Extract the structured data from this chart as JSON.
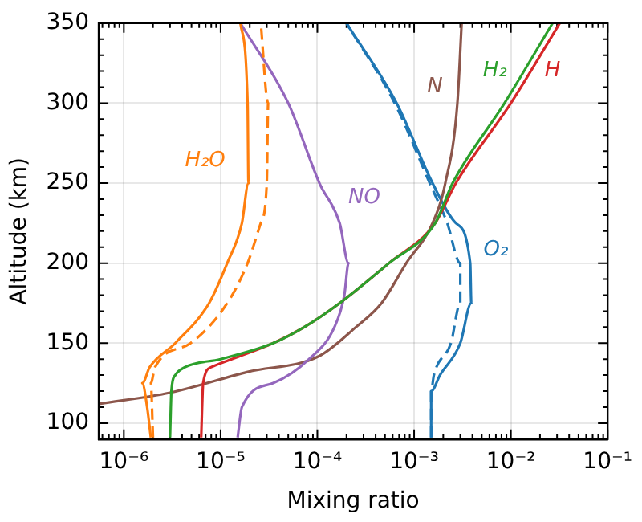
{
  "chart_data": {
    "type": "line",
    "xlabel": "Mixing ratio",
    "ylabel": "Altitude (km)",
    "log": "x",
    "grid": true,
    "legend": false,
    "marker": "none",
    "xlim": [
      5.5e-07,
      0.1
    ],
    "xticks": [
      {
        "value": 6e-07,
        "label": null
      },
      {
        "value": 7e-07,
        "label": null
      },
      {
        "value": 8e-07,
        "label": null
      },
      {
        "value": 9e-07,
        "label": null
      },
      {
        "value": 1e-06,
        "label": "10⁻⁶"
      },
      {
        "value": 2e-06,
        "label": null
      },
      {
        "value": 3e-06,
        "label": null
      },
      {
        "value": 4e-06,
        "label": null
      },
      {
        "value": 5e-06,
        "label": null
      },
      {
        "value": 6e-06,
        "label": null
      },
      {
        "value": 7e-06,
        "label": null
      },
      {
        "value": 8e-06,
        "label": null
      },
      {
        "value": 9e-06,
        "label": null
      },
      {
        "value": 1e-05,
        "label": "10⁻⁵"
      },
      {
        "value": 2e-05,
        "label": null
      },
      {
        "value": 3e-05,
        "label": null
      },
      {
        "value": 4e-05,
        "label": null
      },
      {
        "value": 5e-05,
        "label": null
      },
      {
        "value": 6e-05,
        "label": null
      },
      {
        "value": 7e-05,
        "label": null
      },
      {
        "value": 8e-05,
        "label": null
      },
      {
        "value": 9e-05,
        "label": null
      },
      {
        "value": 0.0001,
        "label": "10⁻⁴"
      },
      {
        "value": 0.0002,
        "label": null
      },
      {
        "value": 0.0003,
        "label": null
      },
      {
        "value": 0.0004,
        "label": null
      },
      {
        "value": 0.0005,
        "label": null
      },
      {
        "value": 0.0006,
        "label": null
      },
      {
        "value": 0.0007,
        "label": null
      },
      {
        "value": 0.0008,
        "label": null
      },
      {
        "value": 0.0009,
        "label": null
      },
      {
        "value": 0.001,
        "label": "10⁻³"
      },
      {
        "value": 0.002,
        "label": null
      },
      {
        "value": 0.003,
        "label": null
      },
      {
        "value": 0.004,
        "label": null
      },
      {
        "value": 0.005,
        "label": null
      },
      {
        "value": 0.006,
        "label": null
      },
      {
        "value": 0.007,
        "label": null
      },
      {
        "value": 0.008,
        "label": null
      },
      {
        "value": 0.009,
        "label": null
      },
      {
        "value": 0.01,
        "label": "10⁻²"
      },
      {
        "value": 0.02,
        "label": null
      },
      {
        "value": 0.03,
        "label": null
      },
      {
        "value": 0.04,
        "label": null
      },
      {
        "value": 0.05,
        "label": null
      },
      {
        "value": 0.06,
        "label": null
      },
      {
        "value": 0.07,
        "label": null
      },
      {
        "value": 0.08,
        "label": null
      },
      {
        "value": 0.09,
        "label": null
      },
      {
        "value": 0.1,
        "label": "10⁻¹"
      }
    ],
    "ylim": [
      90,
      350
    ],
    "yticks": [
      100,
      {
        "value": 110,
        "label": null
      },
      {
        "value": 120,
        "label": null
      },
      {
        "value": 130,
        "label": null
      },
      {
        "value": 140,
        "label": null
      },
      150,
      {
        "value": 160,
        "label": null
      },
      {
        "value": 170,
        "label": null
      },
      {
        "value": 180,
        "label": null
      },
      {
        "value": 190,
        "label": null
      },
      200,
      {
        "value": 210,
        "label": null
      },
      {
        "value": 220,
        "label": null
      },
      {
        "value": 230,
        "label": null
      },
      {
        "value": 240,
        "label": null
      },
      250,
      {
        "value": 260,
        "label": null
      },
      {
        "value": 270,
        "label": null
      },
      {
        "value": 280,
        "label": null
      },
      {
        "value": 290,
        "label": null
      },
      300,
      {
        "value": 310,
        "label": null
      },
      {
        "value": 320,
        "label": null
      },
      {
        "value": 330,
        "label": null
      },
      {
        "value": 340,
        "label": null
      },
      350
    ],
    "series": [
      {
        "name": "H₂O",
        "color": "#ff7f0e",
        "line_style": "solid",
        "x": [
          1.9e-06,
          1.74e-06,
          1.55e-06,
          1.85e-06,
          3.4e-06,
          7.6e-06,
          1.17e-05,
          1.66e-05,
          1.94e-05,
          1.9e-05,
          1.6e-05
        ],
        "values": [
          91,
          110,
          125,
          135,
          150,
          175,
          200,
          225,
          250,
          300,
          350
        ]
      },
      {
        "color": "#ff7f0e",
        "line_style": "dashed",
        "x": [
          2e-06,
          1.9e-06,
          2.1e-06,
          4.9e-06,
          1.17e-05,
          1.9e-05,
          2.6e-05,
          3e-05,
          3.1e-05,
          2.6e-05
        ],
        "values": [
          91,
          125,
          135,
          150,
          175,
          200,
          225,
          250,
          300,
          350
        ]
      },
      {
        "name": "H₂",
        "color": "#2ca02c",
        "line_style": "solid",
        "x": [
          3e-06,
          3.1e-06,
          3.4e-06,
          4.3e-06,
          1e-05,
          3.5e-05,
          7.3e-05,
          0.00017,
          0.00055,
          0.00165,
          0.0025,
          0.0086,
          0.027
        ],
        "values": [
          91,
          120,
          130,
          135,
          140,
          150,
          160,
          175,
          200,
          225,
          250,
          300,
          350
        ]
      },
      {
        "name": "H",
        "color": "#d62728",
        "line_style": "solid",
        "x": [
          6.3e-06,
          6.6e-06,
          8e-06,
          1.3e-05,
          3.5e-05,
          7.3e-05,
          0.00017,
          0.00055,
          0.00165,
          0.0027,
          0.01,
          0.032
        ],
        "values": [
          91,
          125,
          135,
          140,
          150,
          160,
          175,
          200,
          225,
          250,
          300,
          350
        ]
      },
      {
        "name": "NO",
        "color": "#9467bd",
        "line_style": "solid",
        "x": [
          1.5e-05,
          1.66e-05,
          3.5e-05,
          8.2e-05,
          0.00015,
          0.00019,
          0.00021,
          0.00017,
          0.000105,
          5e-05,
          1.6e-05
        ],
        "values": [
          91,
          110,
          125,
          140,
          160,
          180,
          200,
          225,
          250,
          300,
          350
        ]
      },
      {
        "name": "N",
        "color": "#8c564b",
        "line_style": "solid",
        "x": [
          5.5e-07,
          3e-06,
          1.9e-05,
          0.000105,
          0.00025,
          0.00046,
          0.00083,
          0.00155,
          0.0021,
          0.0028,
          0.0031
        ],
        "values": [
          112,
          119,
          132,
          142,
          160,
          175,
          200,
          225,
          250,
          300,
          350
        ]
      },
      {
        "name": "O₂",
        "color": "#1f77b4",
        "line_style": "solid",
        "x": [
          0.0015,
          0.0015,
          0.00185,
          0.003,
          0.0039,
          0.0038,
          0.0027,
          0.00155,
          0.00066,
          0.0002
        ],
        "values": [
          91,
          120,
          130,
          150,
          175,
          200,
          225,
          250,
          300,
          350
        ]
      },
      {
        "color": "#1f77b4",
        "line_style": "dashed",
        "x": [
          0.0015,
          0.0015,
          0.0016,
          0.0024,
          0.003,
          0.003,
          0.0022,
          0.00145,
          0.00063,
          0.0002
        ],
        "values": [
          91,
          120,
          130,
          150,
          175,
          200,
          225,
          250,
          300,
          350
        ]
      }
    ]
  }
}
